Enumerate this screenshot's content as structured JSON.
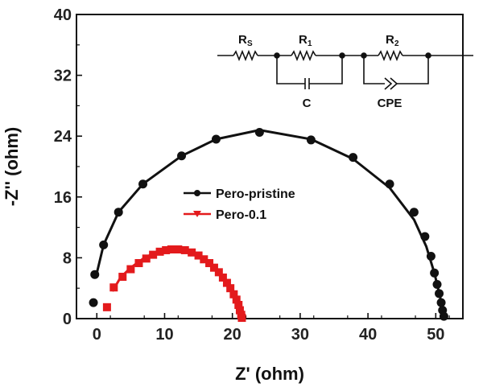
{
  "chart_data": {
    "type": "scatter",
    "xlabel": "Z' (ohm)",
    "ylabel": "-Z'' (ohm)",
    "xlim": [
      -3,
      54
    ],
    "ylim": [
      0,
      40
    ],
    "x_ticks": [
      0,
      10,
      20,
      30,
      40,
      50
    ],
    "y_ticks": [
      0,
      8,
      16,
      24,
      32,
      40
    ],
    "legend_position": "center-left",
    "series": [
      {
        "name": "Pero-pristine",
        "color": "#111111",
        "marker": "circle",
        "points": [
          [
            -0.5,
            2.1
          ],
          [
            -0.3,
            5.8
          ],
          [
            1.0,
            9.7
          ],
          [
            3.2,
            14.0
          ],
          [
            6.8,
            17.7
          ],
          [
            12.5,
            21.4
          ],
          [
            17.6,
            23.6
          ],
          [
            24.0,
            24.5
          ],
          [
            31.6,
            23.5
          ],
          [
            37.8,
            21.2
          ],
          [
            43.2,
            17.7
          ],
          [
            46.8,
            14.0
          ],
          [
            48.4,
            10.8
          ],
          [
            49.3,
            8.2
          ],
          [
            49.8,
            6.0
          ],
          [
            50.2,
            4.5
          ],
          [
            50.5,
            3.3
          ],
          [
            50.8,
            2.1
          ],
          [
            51.0,
            1.1
          ],
          [
            51.2,
            0.3
          ]
        ],
        "fit": [
          [
            0.0,
            6.0
          ],
          [
            1.0,
            9.7
          ],
          [
            3.2,
            14.0
          ],
          [
            6.8,
            17.7
          ],
          [
            12.5,
            21.4
          ],
          [
            17.6,
            23.6
          ],
          [
            24.0,
            24.8
          ],
          [
            31.6,
            23.6
          ],
          [
            37.8,
            21.0
          ],
          [
            43.2,
            17.2
          ],
          [
            46.8,
            13.0
          ],
          [
            48.6,
            9.5
          ],
          [
            49.8,
            6.0
          ],
          [
            50.6,
            3.0
          ],
          [
            51.1,
            0.8
          ],
          [
            51.3,
            0.0
          ]
        ]
      },
      {
        "name": "Pero-0.1",
        "color": "#e31a1c",
        "marker": "square",
        "points": [
          [
            1.5,
            1.5
          ],
          [
            2.5,
            4.1
          ],
          [
            3.8,
            5.5
          ],
          [
            5.0,
            6.5
          ],
          [
            6.2,
            7.3
          ],
          [
            7.3,
            7.9
          ],
          [
            8.3,
            8.4
          ],
          [
            9.3,
            8.8
          ],
          [
            10.2,
            9.0
          ],
          [
            11.0,
            9.1
          ],
          [
            12.0,
            9.1
          ],
          [
            13.0,
            9.0
          ],
          [
            14.0,
            8.7
          ],
          [
            15.0,
            8.3
          ],
          [
            15.8,
            7.8
          ],
          [
            16.6,
            7.3
          ],
          [
            17.3,
            6.7
          ],
          [
            18.0,
            6.1
          ],
          [
            18.6,
            5.4
          ],
          [
            19.2,
            4.7
          ],
          [
            19.7,
            4.0
          ],
          [
            20.2,
            3.2
          ],
          [
            20.6,
            2.5
          ],
          [
            20.9,
            1.8
          ],
          [
            21.1,
            1.1
          ],
          [
            21.3,
            0.5
          ],
          [
            21.4,
            0.1
          ]
        ],
        "fit": [
          [
            2.3,
            3.6
          ],
          [
            3.5,
            5.4
          ],
          [
            5.0,
            6.7
          ],
          [
            7.0,
            8.0
          ],
          [
            9.0,
            8.8
          ],
          [
            11.0,
            9.2
          ],
          [
            12.5,
            9.2
          ],
          [
            14.0,
            8.8
          ],
          [
            15.8,
            8.0
          ],
          [
            17.3,
            6.9
          ],
          [
            18.6,
            5.6
          ],
          [
            19.7,
            4.2
          ],
          [
            20.6,
            2.7
          ],
          [
            21.1,
            1.3
          ],
          [
            21.4,
            0.0
          ]
        ]
      }
    ],
    "inset_circuit": {
      "labels": {
        "rs": "R",
        "rs_sub": "S",
        "r1": "R",
        "r1_sub": "1",
        "r2": "R",
        "r2_sub": "2",
        "c": "C",
        "cpe": "CPE"
      }
    }
  }
}
